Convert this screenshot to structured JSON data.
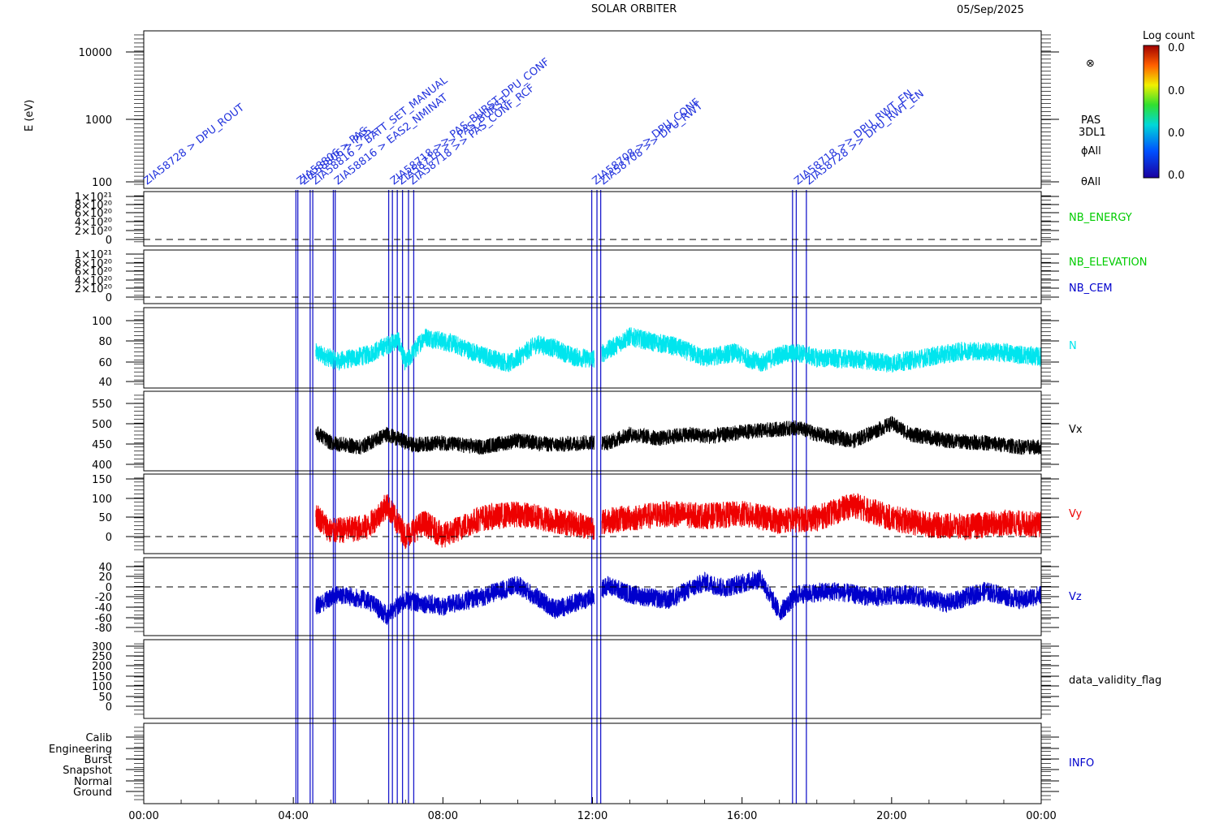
{
  "header": {
    "mission": "SOLAR ORBITER",
    "date": "05/Sep/2025"
  },
  "colorbar": {
    "title": "Log count",
    "ticks": [
      "0.0",
      "0.0",
      "0.0",
      "0.0"
    ]
  },
  "legend_right": {
    "pas": "PAS",
    "mode": "3DL1",
    "phi": "ϕAll",
    "theta": "θAll",
    "circle_symbol": "⊗"
  },
  "colors": {
    "black": "#000000",
    "blue": "#0000cc",
    "cyan": "#00e5ee",
    "red": "#ee0000",
    "green": "#00cc00",
    "annot": "#2233dd"
  },
  "chart_data": {
    "type": "line",
    "x_axis": {
      "unit": "hours",
      "range": [
        0,
        24
      ],
      "ticks": [
        "00:00",
        "04:00",
        "08:00",
        "12:00",
        "16:00",
        "20:00",
        "00:00"
      ]
    },
    "event_markers_hours": [
      4.07,
      4.12,
      4.45,
      4.52,
      5.07,
      5.12,
      6.55,
      6.65,
      6.78,
      6.92,
      7.08,
      7.22,
      11.98,
      12.12,
      12.22,
      17.35,
      17.45,
      17.72
    ],
    "annotations": [
      {
        "text": "ZIA58728 > DPU_ROUT",
        "x_hours": 0.0
      },
      {
        "text": "ZIA58806 > PAS_",
        "x_hours": 4.1
      },
      {
        "text": "ZIA58806 > PAS_",
        "x_hours": 4.2
      },
      {
        "text": "ZIA58816 > BATT_SET_MANUAL",
        "x_hours": 4.5
      },
      {
        "text": "ZIA58816 > EAS2_NMINAT",
        "x_hours": 5.1
      },
      {
        "text": "ZIA58718 >> PAS_BURST_DPU_CONF",
        "x_hours": 6.6
      },
      {
        "text": "ZIA58718 >> PAS_BURST",
        "x_hours": 6.8
      },
      {
        "text": "ZIA58718 >> PAS_CONF_RCF",
        "x_hours": 7.1
      },
      {
        "text": "ZIA58708 >> DPU_CONF",
        "x_hours": 12.0
      },
      {
        "text": "ZIA58708 >> DPU_RWT",
        "x_hours": 12.2
      },
      {
        "text": "ZIA58718 >> DPU_RWT_EN",
        "x_hours": 17.4
      },
      {
        "text": "ZIA58728 >> DPU_RWT_EN",
        "x_hours": 17.7
      }
    ],
    "panels": [
      {
        "name": "E (eV)",
        "ylabel": "E (eV)",
        "type": "heatmap",
        "scale": "log",
        "ylim": [
          100,
          20000
        ],
        "ticks": [
          "10000",
          "1000",
          "100"
        ],
        "labels": [
          "PAS",
          "3DL1",
          "ϕAll",
          "θAll"
        ]
      },
      {
        "name": "NB_ENERGY",
        "label": "NB_ENERGY",
        "ylim": [
          -1e+20,
          1.1e+21
        ],
        "ticks": [
          "1×10²¹",
          "8×10²⁰",
          "6×10²⁰",
          "4×10²⁰",
          "2×10²⁰",
          "0"
        ]
      },
      {
        "name": "NB_ELEVATION",
        "labels": [
          "NB_ELEVATION",
          "NB_CEM"
        ],
        "ylim": [
          -1e+20,
          1.1e+21
        ],
        "ticks": [
          "1×10²¹",
          "8×10²⁰",
          "6×10²⁰",
          "4×10²⁰",
          "2×10²⁰",
          "0"
        ]
      },
      {
        "name": "N",
        "label": "N",
        "ylim": [
          37,
          112
        ],
        "ticks": [
          "100",
          "80",
          "60",
          "40"
        ],
        "data_start_hours": 4.6,
        "gap_hours": [
          12.05,
          12.25
        ],
        "anchors": [
          [
            4.6,
            70
          ],
          [
            5.2,
            62
          ],
          [
            6.0,
            68
          ],
          [
            6.8,
            82
          ],
          [
            7.0,
            60
          ],
          [
            7.5,
            85
          ],
          [
            8.3,
            78
          ],
          [
            9.0,
            68
          ],
          [
            9.8,
            60
          ],
          [
            10.5,
            78
          ],
          [
            11.0,
            74
          ],
          [
            11.5,
            66
          ],
          [
            12.0,
            64
          ],
          [
            12.4,
            72
          ],
          [
            13.0,
            85
          ],
          [
            13.6,
            80
          ],
          [
            14.2,
            76
          ],
          [
            15.0,
            65
          ],
          [
            15.8,
            70
          ],
          [
            16.5,
            60
          ],
          [
            17.0,
            68
          ],
          [
            17.5,
            70
          ],
          [
            18.0,
            65
          ],
          [
            19.0,
            64
          ],
          [
            20.0,
            60
          ],
          [
            21.0,
            66
          ],
          [
            22.0,
            72
          ],
          [
            23.0,
            70
          ],
          [
            24.0,
            66
          ]
        ]
      },
      {
        "name": "Vx",
        "label": "Vx",
        "ylim": [
          385,
          570
        ],
        "ticks": [
          "550",
          "500",
          "450",
          "400"
        ],
        "data_start_hours": 4.6,
        "gap_hours": [
          12.05,
          12.25
        ],
        "anchors": [
          [
            4.6,
            475
          ],
          [
            5.0,
            450
          ],
          [
            5.8,
            440
          ],
          [
            6.5,
            470
          ],
          [
            7.2,
            445
          ],
          [
            8.0,
            450
          ],
          [
            9.0,
            440
          ],
          [
            10.0,
            455
          ],
          [
            11.0,
            445
          ],
          [
            12.0,
            452
          ],
          [
            12.4,
            450
          ],
          [
            13.0,
            470
          ],
          [
            13.8,
            460
          ],
          [
            14.5,
            470
          ],
          [
            15.2,
            465
          ],
          [
            16.0,
            475
          ],
          [
            17.0,
            482
          ],
          [
            17.5,
            485
          ],
          [
            18.0,
            470
          ],
          [
            19.0,
            455
          ],
          [
            20.0,
            495
          ],
          [
            20.5,
            470
          ],
          [
            21.5,
            455
          ],
          [
            22.5,
            450
          ],
          [
            23.5,
            440
          ],
          [
            24.0,
            440
          ]
        ]
      },
      {
        "name": "Vy",
        "label": "Vy",
        "ylim": [
          -20,
          160
        ],
        "ticks": [
          "150",
          "100",
          "50",
          "0"
        ],
        "data_start_hours": 4.6,
        "gap_hours": [
          12.05,
          12.25
        ],
        "anchors": [
          [
            4.6,
            70
          ],
          [
            5.0,
            30
          ],
          [
            6.0,
            40
          ],
          [
            6.5,
            90
          ],
          [
            7.0,
            20
          ],
          [
            7.5,
            50
          ],
          [
            8.0,
            20
          ],
          [
            9.0,
            60
          ],
          [
            10.0,
            70
          ],
          [
            11.0,
            55
          ],
          [
            12.0,
            40
          ],
          [
            12.4,
            55
          ],
          [
            13.0,
            60
          ],
          [
            14.0,
            70
          ],
          [
            15.0,
            65
          ],
          [
            16.0,
            70
          ],
          [
            17.0,
            55
          ],
          [
            18.0,
            60
          ],
          [
            19.0,
            90
          ],
          [
            20.0,
            60
          ],
          [
            21.0,
            45
          ],
          [
            22.0,
            40
          ],
          [
            23.0,
            50
          ],
          [
            24.0,
            45
          ]
        ]
      },
      {
        "name": "Vz",
        "label": "Vz",
        "ylim": [
          -78,
          50
        ],
        "ticks": [
          "40",
          "20",
          "0",
          "-20",
          "-40",
          "-60",
          "-80"
        ],
        "data_start_hours": 4.6,
        "gap_hours": [
          12.05,
          12.25
        ],
        "anchors": [
          [
            4.6,
            -30
          ],
          [
            5.2,
            -10
          ],
          [
            6.0,
            -20
          ],
          [
            6.5,
            -45
          ],
          [
            7.0,
            -20
          ],
          [
            8.0,
            -30
          ],
          [
            9.0,
            -15
          ],
          [
            10.0,
            5
          ],
          [
            11.0,
            -35
          ],
          [
            12.0,
            -15
          ],
          [
            12.4,
            5
          ],
          [
            13.0,
            -10
          ],
          [
            14.0,
            -20
          ],
          [
            15.0,
            10
          ],
          [
            15.5,
            0
          ],
          [
            16.5,
            15
          ],
          [
            17.0,
            -40
          ],
          [
            17.5,
            -10
          ],
          [
            18.5,
            -5
          ],
          [
            19.5,
            -15
          ],
          [
            20.5,
            -10
          ],
          [
            21.5,
            -25
          ],
          [
            22.5,
            -5
          ],
          [
            23.5,
            -20
          ],
          [
            24.0,
            -10
          ]
        ]
      },
      {
        "name": "data_validity_flag",
        "label": "data_validity_flag",
        "ylim": [
          -20,
          310
        ],
        "ticks": [
          "300",
          "250",
          "200",
          "150",
          "100",
          "50",
          "0"
        ]
      },
      {
        "name": "INFO",
        "label": "INFO",
        "categories": [
          "Calib",
          "Engineering",
          "Burst",
          "Snapshot",
          "Normal",
          "Ground"
        ]
      }
    ]
  }
}
